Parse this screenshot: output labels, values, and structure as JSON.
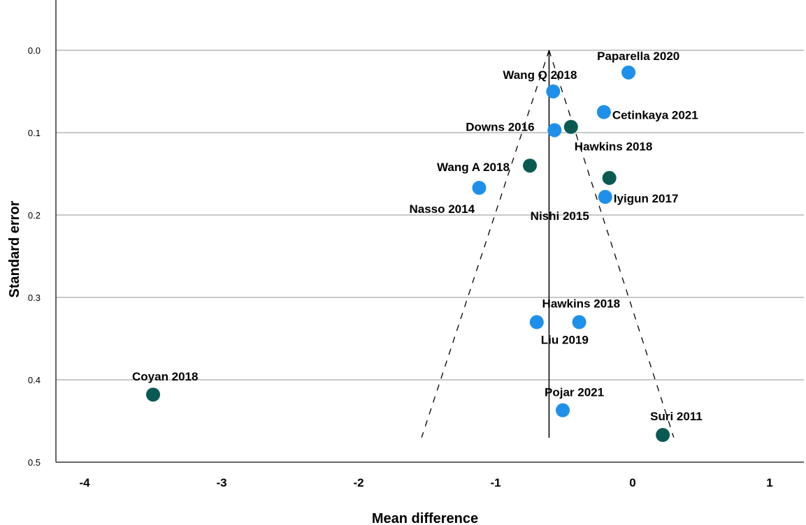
{
  "chart_data": {
    "type": "scatter",
    "title": "",
    "xlabel": "Mean difference",
    "ylabel": "Standard error",
    "xlim": [
      -4.3,
      1.3
    ],
    "ylim": [
      0.5,
      -0.05
    ],
    "y_axis_inverted": true,
    "grid": "horizontal",
    "x_ticks": [
      "-4",
      "-3",
      "-2",
      "-1",
      "0",
      "1"
    ],
    "y_ticks": [
      "0.0",
      "0.1",
      "0.2",
      "0.3",
      "0.4",
      "0.5"
    ],
    "pooled_estimate": -0.61,
    "funnel": {
      "apex": [
        -0.61,
        0.0
      ],
      "base_left": [
        -1.54,
        0.47
      ],
      "base_right": [
        0.3,
        0.47
      ]
    },
    "colors": {
      "light_blue": "#1e90ea",
      "dark_teal": "#0a5a52"
    },
    "points": [
      {
        "label": "Paparella 2020",
        "x": -0.03,
        "y": 0.027,
        "color": "light_blue"
      },
      {
        "label": "Wang Q 2018",
        "x": -0.58,
        "y": 0.05,
        "color": "light_blue"
      },
      {
        "label": "Cetinkaya 2021",
        "x": -0.21,
        "y": 0.075,
        "color": "light_blue"
      },
      {
        "label": "Downs 2016",
        "x": -0.57,
        "y": 0.097,
        "color": "light_blue"
      },
      {
        "label": "Hawkins 2018",
        "x": -0.45,
        "y": 0.093,
        "color": "dark_teal"
      },
      {
        "label": "Wang A 2018",
        "x": -0.75,
        "y": 0.14,
        "color": "dark_teal"
      },
      {
        "label": "Nasso 2014",
        "x": -1.12,
        "y": 0.167,
        "color": "light_blue"
      },
      {
        "label": "Nishi 2015",
        "x": -0.17,
        "y": 0.155,
        "color": "dark_teal"
      },
      {
        "label": "Iyigun 2017",
        "x": -0.2,
        "y": 0.178,
        "color": "light_blue"
      },
      {
        "label": "Hawkins 2018",
        "x": -0.39,
        "y": 0.33,
        "color": "light_blue"
      },
      {
        "label": "Liu 2019",
        "x": -0.7,
        "y": 0.33,
        "color": "light_blue"
      },
      {
        "label": "Coyan 2018",
        "x": -3.5,
        "y": 0.418,
        "color": "dark_teal"
      },
      {
        "label": "Pojar 2021",
        "x": -0.51,
        "y": 0.437,
        "color": "light_blue"
      },
      {
        "label": "Suri 2011",
        "x": 0.22,
        "y": 0.467,
        "color": "dark_teal"
      }
    ]
  }
}
